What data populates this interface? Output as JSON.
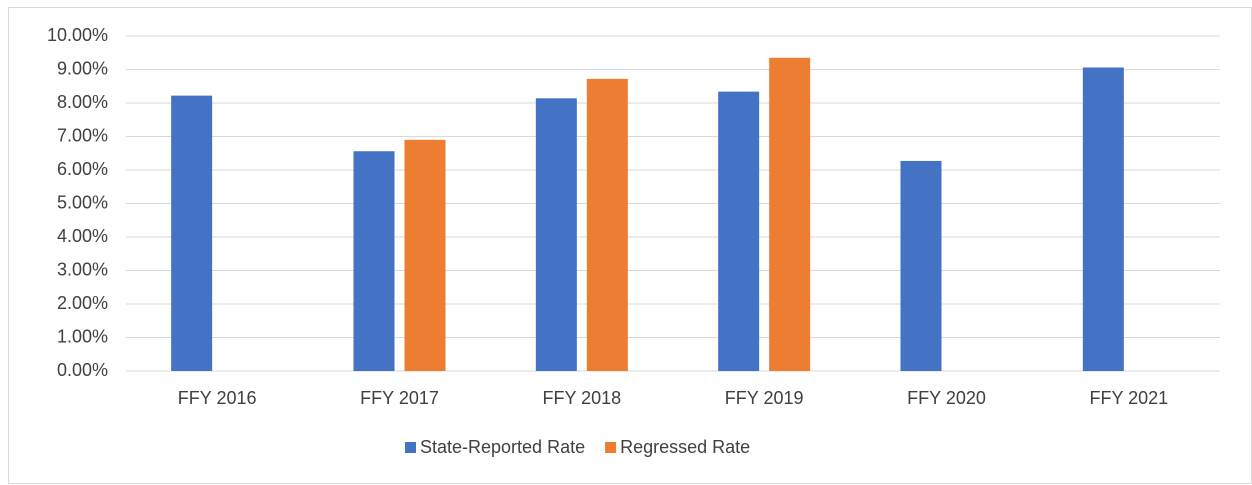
{
  "chart_data": {
    "type": "bar",
    "categories": [
      "FFY 2016",
      "FFY 2017",
      "FFY 2018",
      "FFY 2019",
      "FFY 2020",
      "FFY 2021"
    ],
    "series": [
      {
        "name": "State-Reported Rate",
        "color": "#4472c4",
        "values": [
          8.22,
          6.56,
          8.14,
          8.34,
          6.27,
          9.06
        ]
      },
      {
        "name": "Regressed Rate",
        "color": "#ed7d31",
        "values": [
          null,
          6.9,
          8.72,
          9.35,
          null,
          null
        ]
      }
    ],
    "ylim": [
      0,
      10
    ],
    "yticks": [
      {
        "value": 0,
        "label": "0.00%"
      },
      {
        "value": 1,
        "label": "1.00%"
      },
      {
        "value": 2,
        "label": "2.00%"
      },
      {
        "value": 3,
        "label": "3.00%"
      },
      {
        "value": 4,
        "label": "4.00%"
      },
      {
        "value": 5,
        "label": "5.00%"
      },
      {
        "value": 6,
        "label": "6.00%"
      },
      {
        "value": 7,
        "label": "7.00%"
      },
      {
        "value": 8,
        "label": "8.00%"
      },
      {
        "value": 9,
        "label": "9.00%"
      },
      {
        "value": 10,
        "label": "10.00%"
      }
    ],
    "grid": true,
    "legend": "bottom"
  }
}
